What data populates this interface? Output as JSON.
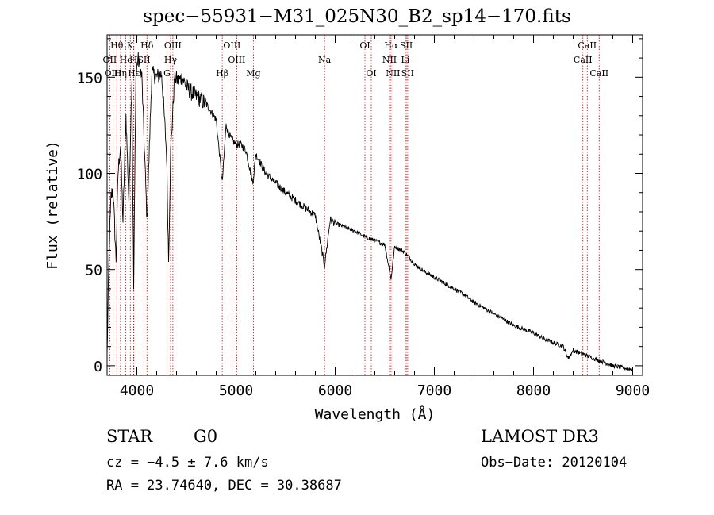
{
  "chart_data": {
    "type": "line",
    "title": "spec−55931−M31_025N30_B2_sp14−170.fits",
    "xlabel": "Wavelength (Å)",
    "ylabel": "Flux (relative)",
    "xlim": [
      3700,
      9100
    ],
    "ylim": [
      -5,
      172
    ],
    "xticks": [
      4000,
      5000,
      6000,
      7000,
      8000,
      9000
    ],
    "xtick_labels": [
      "4000",
      "5000",
      "6000",
      "7000",
      "8000",
      "9000"
    ],
    "yticks": [
      0,
      50,
      100,
      150
    ],
    "ytick_labels": [
      "0",
      "50",
      "100",
      "150"
    ],
    "grid": false,
    "series": [
      {
        "name": "spectrum",
        "x": [
          3700,
          3720,
          3740,
          3760,
          3790,
          3810,
          3835,
          3860,
          3890,
          3920,
          3950,
          3968,
          3990,
          4010,
          4050,
          4102,
          4150,
          4200,
          4250,
          4300,
          4320,
          4340,
          4380,
          4420,
          4460,
          4500,
          4550,
          4600,
          4650,
          4700,
          4750,
          4800,
          4861,
          4900,
          4950,
          5000,
          5050,
          5100,
          5170,
          5200,
          5250,
          5300,
          5400,
          5500,
          5600,
          5700,
          5800,
          5893,
          5950,
          6000,
          6100,
          6200,
          6300,
          6400,
          6500,
          6563,
          6600,
          6700,
          6800,
          6900,
          7000,
          7100,
          7200,
          7300,
          7400,
          7500,
          7600,
          7700,
          7800,
          7900,
          8000,
          8100,
          8200,
          8300,
          8350,
          8400,
          8500,
          8600,
          8700,
          8800,
          8900,
          9000
        ],
        "values": [
          5,
          60,
          88,
          92,
          55,
          100,
          115,
          75,
          130,
          85,
          150,
          40,
          150,
          160,
          150,
          75,
          152,
          150,
          152,
          110,
          55,
          110,
          150,
          148,
          150,
          145,
          142,
          140,
          138,
          136,
          132,
          128,
          95,
          125,
          118,
          115,
          115,
          112,
          95,
          110,
          105,
          100,
          95,
          90,
          86,
          82,
          78,
          52,
          76,
          74,
          72,
          70,
          67,
          65,
          63,
          45,
          62,
          59,
          53,
          49,
          46,
          43,
          40,
          37,
          33,
          30,
          27,
          24,
          21,
          19,
          17,
          14,
          12,
          10,
          4,
          8,
          6,
          4,
          2,
          0,
          -1,
          -2
        ]
      }
    ],
    "line_markers": [
      {
        "label": "Hθ",
        "wavelength": 3798,
        "row": 1
      },
      {
        "label": "OII",
        "wavelength": 3727,
        "row": 2
      },
      {
        "label": "OIII",
        "wavelength": 3760,
        "row": 3
      },
      {
        "label": "He",
        "wavelength": 3889,
        "row": 2
      },
      {
        "label": "Hη",
        "wavelength": 3835,
        "row": 3
      },
      {
        "label": "K",
        "wavelength": 3934,
        "row": 1
      },
      {
        "label": "H",
        "wavelength": 3968,
        "row": 2
      },
      {
        "label": "Hε",
        "wavelength": 3970,
        "row": 3
      },
      {
        "label": "Hδ",
        "wavelength": 4102,
        "row": 1
      },
      {
        "label": "SII",
        "wavelength": 4072,
        "row": 2
      },
      {
        "label": "OIII",
        "wavelength": 4363,
        "row": 1
      },
      {
        "label": "Hγ",
        "wavelength": 4340,
        "row": 2
      },
      {
        "label": "G",
        "wavelength": 4304,
        "row": 3
      },
      {
        "label": "OIII",
        "wavelength": 4959,
        "row": 1
      },
      {
        "label": "OIII",
        "wavelength": 5007,
        "row": 2
      },
      {
        "label": "Hβ",
        "wavelength": 4861,
        "row": 3
      },
      {
        "label": "Mg",
        "wavelength": 5175,
        "row": 3
      },
      {
        "label": "Na",
        "wavelength": 5893,
        "row": 2
      },
      {
        "label": "OI",
        "wavelength": 6300,
        "row": 1
      },
      {
        "label": "OI",
        "wavelength": 6364,
        "row": 3
      },
      {
        "label": "Hα",
        "wavelength": 6563,
        "row": 1
      },
      {
        "label": "NII",
        "wavelength": 6548,
        "row": 2
      },
      {
        "label": "NII",
        "wavelength": 6583,
        "row": 3
      },
      {
        "label": "SII",
        "wavelength": 6717,
        "row": 1
      },
      {
        "label": "Li",
        "wavelength": 6707,
        "row": 2
      },
      {
        "label": "SII",
        "wavelength": 6731,
        "row": 3
      },
      {
        "label": "CaII",
        "wavelength": 8542,
        "row": 1
      },
      {
        "label": "CaII",
        "wavelength": 8498,
        "row": 2
      },
      {
        "label": "CaII",
        "wavelength": 8662,
        "row": 3
      }
    ]
  },
  "info": {
    "obj_type": "STAR",
    "obj_class": "G0",
    "survey": "LAMOST DR3",
    "cz": "cz = −4.5 ± 7.6 km/s",
    "obs_date": "Obs−Date: 20120104",
    "radec": "RA =  23.74640, DEC =  30.38687"
  },
  "colors": {
    "line_marker": "#c00000",
    "spectrum": "#000000",
    "axis": "#000000"
  }
}
